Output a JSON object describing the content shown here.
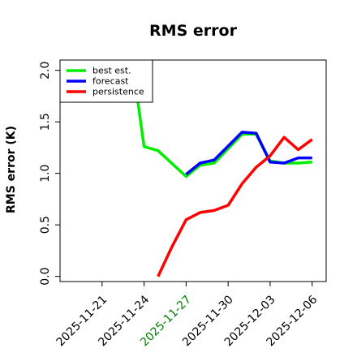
{
  "chart_data": {
    "type": "line",
    "title": "RMS error",
    "xlabel": "",
    "ylabel": "RMS error (K)",
    "ylim": [
      -0.05,
      2.1
    ],
    "xlim": [
      "2025-11-18",
      "2025-12-07"
    ],
    "grid": false,
    "legend_position": "top-left",
    "y_ticks": [
      "0.0",
      "0.5",
      "1.0",
      "1.5",
      "2.0"
    ],
    "x_ticks": [
      {
        "date": "2025-11-21",
        "label": "2025-11-21",
        "color": "#000000"
      },
      {
        "date": "2025-11-24",
        "label": "2025-11-24",
        "color": "#000000"
      },
      {
        "date": "2025-11-27",
        "label": "2025-11-27",
        "color": "#008000"
      },
      {
        "date": "2025-11-30",
        "label": "2025-11-30",
        "color": "#000000"
      },
      {
        "date": "2025-12-03",
        "label": "2025-12-03",
        "color": "#000000"
      },
      {
        "date": "2025-12-06",
        "label": "2025-12-06",
        "color": "#000000"
      }
    ],
    "series": [
      {
        "name": "best est.",
        "color": "#00ee00",
        "points": [
          {
            "x": "2025-11-23T12:00",
            "y": 1.75
          },
          {
            "x": "2025-11-24",
            "y": 1.26
          },
          {
            "x": "2025-11-25",
            "y": 1.22
          },
          {
            "x": "2025-11-27",
            "y": 0.97
          },
          {
            "x": "2025-11-28",
            "y": 1.08
          },
          {
            "x": "2025-11-29",
            "y": 1.1
          },
          {
            "x": "2025-12-01",
            "y": 1.38
          },
          {
            "x": "2025-12-02",
            "y": 1.38
          },
          {
            "x": "2025-12-03",
            "y": 1.12
          },
          {
            "x": "2025-12-04",
            "y": 1.1
          },
          {
            "x": "2025-12-05",
            "y": 1.1
          },
          {
            "x": "2025-12-06",
            "y": 1.11
          }
        ]
      },
      {
        "name": "forecast",
        "color": "#0000ff",
        "points": [
          {
            "x": "2025-11-27",
            "y": 0.99
          },
          {
            "x": "2025-11-28",
            "y": 1.1
          },
          {
            "x": "2025-11-29",
            "y": 1.13
          },
          {
            "x": "2025-12-01",
            "y": 1.4
          },
          {
            "x": "2025-12-02",
            "y": 1.39
          },
          {
            "x": "2025-12-03",
            "y": 1.11
          },
          {
            "x": "2025-12-04",
            "y": 1.1
          },
          {
            "x": "2025-12-05",
            "y": 1.15
          },
          {
            "x": "2025-12-06",
            "y": 1.15
          }
        ]
      },
      {
        "name": "persistence",
        "color": "#ff0000",
        "points": [
          {
            "x": "2025-11-25",
            "y": 0.0
          },
          {
            "x": "2025-11-26",
            "y": 0.29
          },
          {
            "x": "2025-11-27",
            "y": 0.55
          },
          {
            "x": "2025-11-28",
            "y": 0.62
          },
          {
            "x": "2025-11-29",
            "y": 0.64
          },
          {
            "x": "2025-11-30",
            "y": 0.69
          },
          {
            "x": "2025-12-01",
            "y": 0.9
          },
          {
            "x": "2025-12-02",
            "y": 1.06
          },
          {
            "x": "2025-12-03",
            "y": 1.17
          },
          {
            "x": "2025-12-04",
            "y": 1.35
          },
          {
            "x": "2025-12-05",
            "y": 1.23
          },
          {
            "x": "2025-12-06",
            "y": 1.33
          }
        ]
      }
    ]
  }
}
